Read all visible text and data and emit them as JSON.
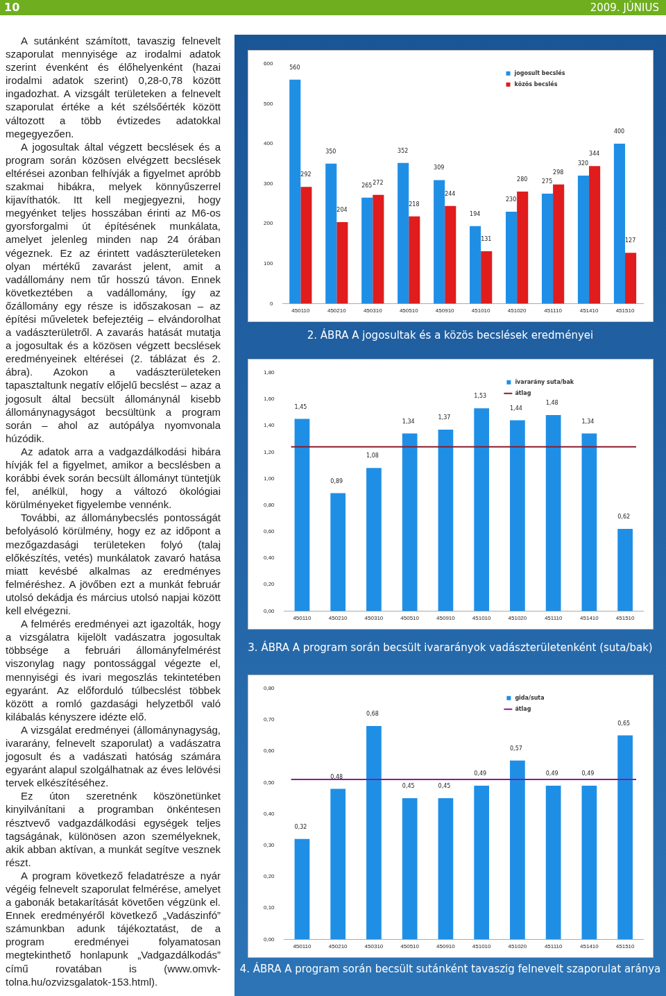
{
  "chart_data": [
    {
      "type": "other",
      "annotations": [
        "10",
        "2009. JÚNIUS",
        "A sutánként számított, tavaszig felnevelt szaporulat mennyisége az irodalmi adatok szerint évenként és élőhelyenként (hazai irodalmi adatok szerint) 0,28-0,78 között ingadozhat. A vizsgált területeken a felnevelt szaporulat értéke a két szélsőérték között változott a több évtizedes adatokkal megegyezően.",
        "A jogosultak által végzett becslések és a program során közösen elvégzett becslések eltérései azonban felhívják a figyelmet apróbb szakmai hibákra, melyek könnyűszerrel kijavíthatók. Itt kell megjegyezni, hogy megyénket teljes hosszában érinti az M6-os gyorsforgalmi út építésének munkálata, amelyet jelenleg minden nap 24 órában végeznek. Ez az érintett vadászterületeken olyan mértékű zavarást jelent, amit a vadállomány nem tűr hosszú távon. Ennek következtében a vadállomány, így az őzállomány egy része is időszakosan – az építési műveletek befejeztéig – elvándorolhat a vadászterületről. A zavarás hatását mutatja a jogosultak és a közösen végzett becslések eredményeinek eltérései (2. táblázat és 2. ábra). Azokon a vadászterületeken tapasztaltunk negatív előjelű becslést – azaz a jogosult által becsült állománynál kisebb állománynagyságot becsültünk a program során – ahol az autópálya nyomvonala húzódik.",
        "Az adatok arra a vadgazdálkodási hibára hívják fel a figyelmet, amikor a becslésben a korábbi évek során becsült állományt tüntetjük fel, anélkül, hogy a változó ökológiai körülményeket figyelembe vennénk.",
        "További, az állománybecslés pontosságát befolyásoló körülmény, hogy ez az időpont a mezőgazdasági területeken folyó (talaj előkészítés, vetés) munkálatok zavaró hatása miatt kevésbé alkalmas az eredményes felméréshez. A jövőben ezt a munkát február utolsó dekádja és március utolsó napjai között kell elvégezni.",
        "A felmérés eredményei azt igazolták, hogy a vizsgálatra kijelölt vadászatra jogosultak többsége a februári állományfelmérést viszonylag nagy pontossággal végezte el, mennyiségi és ivari megoszlás tekintetében egyaránt. Az előforduló túlbecslést többek között a romló gazdasági helyzetből való kilábalás kényszere idézte elő.",
        "A vizsgálat eredményei (állománynagyság, ivararány, felnevelt szaporulat) a vadászatra jogosult és a vadászati hatóság számára egyaránt alapul szolgálhatnak az éves lelövési tervek elkészítéséhez.",
        "Ez úton szeretnénk köszönetünket kinyilvánítani a programban önkéntesen résztvevő vadgazdálkodási egységek teljes tagságának, különösen azon személyeknek, akik abban aktívan, a munkát segítve vesznek részt.",
        "A program következő feladatrésze a nyár végéig felnevelt szaporulat felmérése, amelyet a gabonák betakarítását követően végzünk el. Ennek eredményéről következő „Vadászinfó” számunkban adunk tájékoztatást, de a program eredményei folyamatosan megtekinthető honlapunk „Vadgazdálkodás” című rovatában is (www.omvk-tolna.hu/ozvizsgalatok-153.html)."
      ]
    },
    {
      "type": "bar",
      "title": "2. ÁBRA  A jogosultak és a közös becslések eredményei",
      "categories": [
        "450110",
        "450210",
        "450310",
        "450510",
        "450910",
        "451010",
        "451020",
        "451110",
        "451410",
        "451510"
      ],
      "series": [
        {
          "name": "jogosult becslés",
          "color": "#1f8fe6",
          "values": [
            560,
            350,
            265,
            352,
            309,
            194,
            230,
            275,
            320,
            400
          ]
        },
        {
          "name": "közös becslés",
          "color": "#e01c1c",
          "values": [
            292,
            204,
            272,
            218,
            244,
            131,
            280,
            298,
            344,
            127
          ]
        }
      ],
      "ylim": [
        0,
        600
      ],
      "yticks": [
        0,
        100,
        200,
        300,
        400,
        500,
        600
      ],
      "data_labels": true,
      "legend": "top right",
      "grid": false
    },
    {
      "type": "bar",
      "title": "3. ÁBRA  A program során becsült ivararányok vadászterületenként (suta/bak)",
      "categories": [
        "450110",
        "450210",
        "450310",
        "450510",
        "450910",
        "451010",
        "451020",
        "451110",
        "451410",
        "451510"
      ],
      "series": [
        {
          "name": "ivararány suta/bak",
          "color": "#1f8fe6",
          "values": [
            1.45,
            0.89,
            1.08,
            1.34,
            1.37,
            1.53,
            1.44,
            1.48,
            1.34,
            0.62
          ],
          "value_labels": [
            "1,45",
            "0,89",
            "1,08",
            "1,34",
            "1,37",
            "1,53",
            "1,44",
            "1,48",
            "1,34",
            "0,62"
          ]
        }
      ],
      "ylim": [
        0,
        1.8
      ],
      "yticks": [
        {
          "value": 0,
          "label": "0,00"
        },
        {
          "value": 0.2,
          "label": "0,20"
        },
        {
          "value": 0.4,
          "label": "0,40"
        },
        {
          "value": 0.6,
          "label": "0,60"
        },
        {
          "value": 0.8,
          "label": "0,80"
        },
        {
          "value": 1,
          "label": "1,00"
        },
        {
          "value": 1.2,
          "label": "1,20"
        },
        {
          "value": 1.4,
          "label": "1,40"
        },
        {
          "value": 1.6,
          "label": "1,60"
        },
        {
          "value": 1.8,
          "label": "1,80"
        }
      ],
      "ref_lines": [
        {
          "axis": "y",
          "value": 1.24,
          "label": "átlag",
          "color": "#8b1a2a"
        }
      ],
      "legend": "top right",
      "grid": false
    },
    {
      "type": "bar",
      "title": "4. ÁBRA  A program során becsült sutánként tavaszig felnevelt szaporulat aránya",
      "categories": [
        "450110",
        "450210",
        "450310",
        "450510",
        "450910",
        "451010",
        "451020",
        "451110",
        "451410",
        "451510"
      ],
      "series": [
        {
          "name": "gida/suta",
          "color": "#1f8fe6",
          "values": [
            0.32,
            0.48,
            0.68,
            0.45,
            0.45,
            0.49,
            0.57,
            0.49,
            0.49,
            0.65
          ],
          "value_labels": [
            "0,32",
            "0,48",
            "0,68",
            "0,45",
            "0,45",
            "0,49",
            "0,57",
            "0,49",
            "0,49",
            "0,65"
          ]
        }
      ],
      "ylim": [
        0,
        0.8
      ],
      "yticks": [
        {
          "value": 0,
          "label": "0,00"
        },
        {
          "value": 0.1,
          "label": "0,10"
        },
        {
          "value": 0.2,
          "label": "0,20"
        },
        {
          "value": 0.3,
          "label": "0,30"
        },
        {
          "value": 0.4,
          "label": "0,40"
        },
        {
          "value": 0.5,
          "label": "0,50"
        },
        {
          "value": 0.6,
          "label": "0,60"
        },
        {
          "value": 0.7,
          "label": "0,70"
        },
        {
          "value": 0.8,
          "label": "0,80"
        }
      ],
      "ref_lines": [
        {
          "axis": "y",
          "value": 0.51,
          "label": "átlag",
          "color": "#8a1a9a"
        }
      ],
      "legend": "top right",
      "grid": false
    }
  ]
}
